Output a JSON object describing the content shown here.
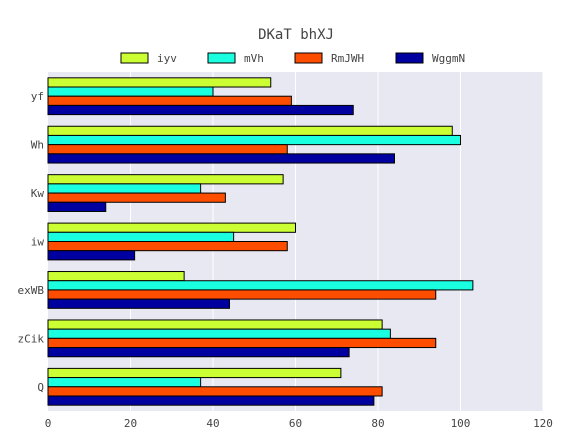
{
  "chart_data": {
    "type": "bar",
    "orientation": "horizontal",
    "title": "DKaT bhXJ",
    "xlabel": "",
    "ylabel": "",
    "xlim": [
      0,
      120
    ],
    "xticks": [
      0,
      20,
      40,
      60,
      80,
      100,
      120
    ],
    "grid": true,
    "legend_position": "top",
    "categories": [
      "yf",
      "Wh",
      "Kw",
      "iw",
      "exWB",
      "zCik",
      "Q"
    ],
    "series": [
      {
        "name": "iyv",
        "color": "#ccff33",
        "values": [
          54,
          98,
          57,
          60,
          33,
          81,
          71
        ]
      },
      {
        "name": "mVh",
        "color": "#1affe0",
        "values": [
          40,
          100,
          37,
          45,
          103,
          83,
          37
        ]
      },
      {
        "name": "RmJWH",
        "color": "#ff4d00",
        "values": [
          59,
          58,
          43,
          58,
          94,
          94,
          81
        ]
      },
      {
        "name": "WggmN",
        "color": "#0000a0",
        "values": [
          74,
          84,
          14,
          21,
          44,
          73,
          79
        ]
      }
    ],
    "plot_background": "#e8e8f2"
  }
}
